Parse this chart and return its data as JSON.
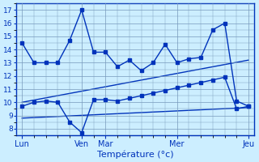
{
  "background_color": "#cceeff",
  "grid_color": "#7799bb",
  "line_color": "#0033bb",
  "xlabel": "Température (°c)",
  "xlabel_fontsize": 8,
  "yticks": [
    8,
    9,
    10,
    11,
    12,
    13,
    14,
    15,
    16,
    17
  ],
  "ylim": [
    7.5,
    17.5
  ],
  "xlim": [
    -0.5,
    19.5
  ],
  "xtick_positions": [
    0,
    5,
    7,
    13,
    19
  ],
  "xtick_labels": [
    "Lun",
    "Ven",
    "Mar",
    "Mer",
    "Jeu"
  ],
  "line1_x": [
    0,
    1,
    2,
    3,
    4,
    5,
    6,
    7,
    8,
    9,
    10,
    11,
    12,
    13,
    14,
    15,
    16,
    17,
    18,
    19
  ],
  "line1_y": [
    14.5,
    13.0,
    13.0,
    13.0,
    14.7,
    17.0,
    13.8,
    13.8,
    12.7,
    13.2,
    12.4,
    13.0,
    14.4,
    13.0,
    13.3,
    13.4,
    15.5,
    16.0,
    10.1,
    9.7
  ],
  "line2_x": [
    0,
    1,
    2,
    3,
    4,
    5,
    6,
    7,
    8,
    9,
    10,
    11,
    12,
    13,
    14,
    15,
    16,
    17,
    18,
    19
  ],
  "line2_y": [
    9.7,
    10.0,
    10.1,
    10.0,
    8.5,
    7.7,
    10.2,
    10.2,
    10.1,
    10.3,
    10.5,
    10.7,
    10.9,
    11.1,
    11.3,
    11.5,
    11.7,
    11.9,
    9.5,
    9.7
  ],
  "line3_x": [
    0,
    19
  ],
  "line3_y": [
    10.0,
    13.2
  ],
  "line4_x": [
    0,
    19
  ],
  "line4_y": [
    8.8,
    9.6
  ],
  "marker": "s",
  "marker_size": 2.5,
  "line_width": 1.0
}
